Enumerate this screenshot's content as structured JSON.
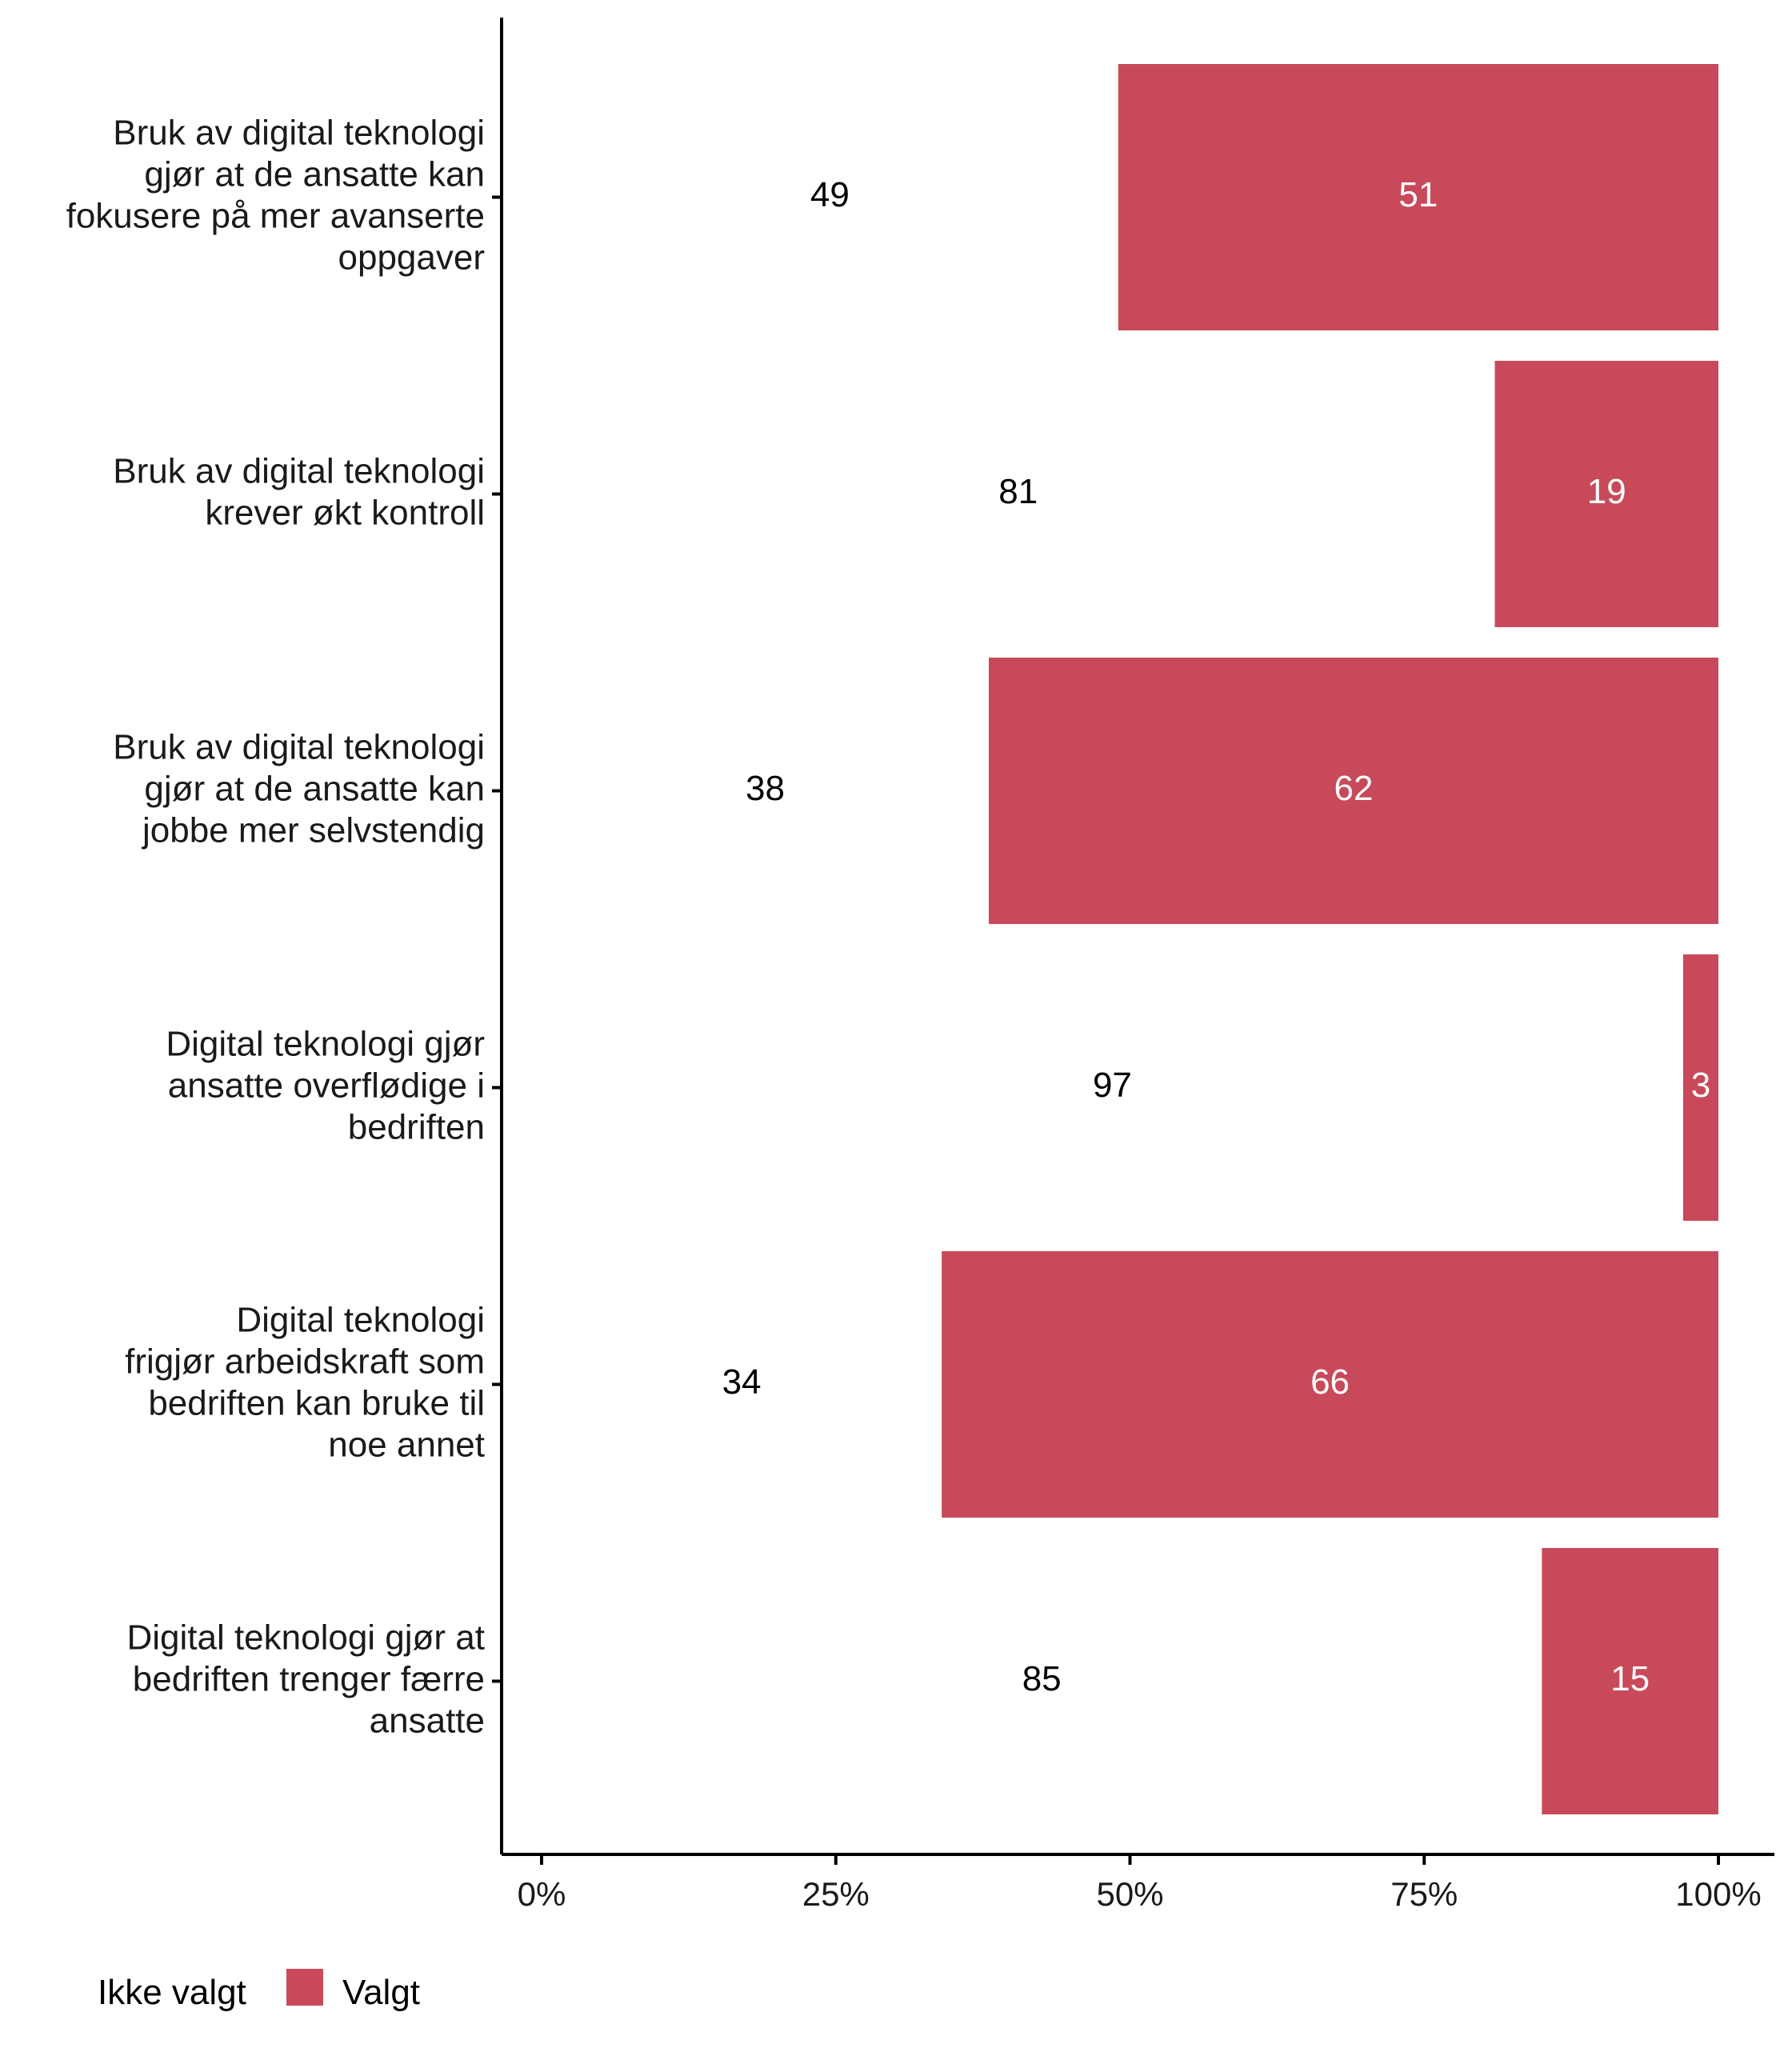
{
  "chart_data": {
    "type": "bar",
    "orientation": "horizontal",
    "stacked": true,
    "categories": [
      [
        "Bruk av digital teknologi",
        "gjør at de ansatte kan",
        "fokusere på mer avanserte",
        "oppgaver"
      ],
      [
        "Bruk av digital teknologi",
        "krever økt kontroll"
      ],
      [
        "Bruk av digital teknologi",
        "gjør at de ansatte kan",
        "jobbe mer selvstendig"
      ],
      [
        "Digital teknologi gjør",
        "ansatte overflødige i",
        "bedriften"
      ],
      [
        "Digital teknologi",
        "frigjør arbeidskraft som",
        "bedriften kan bruke til",
        "noe annet"
      ],
      [
        "Digital teknologi gjør at",
        "bedriften trenger færre",
        "ansatte"
      ]
    ],
    "series": [
      {
        "name": "Ikke valgt",
        "color": "#ffffff",
        "values": [
          49,
          81,
          38,
          97,
          34,
          85
        ]
      },
      {
        "name": "Valgt",
        "color": "#c84a5a",
        "values": [
          51,
          19,
          62,
          3,
          66,
          15
        ]
      }
    ],
    "xlim": [
      0,
      100
    ],
    "xticks": [
      0,
      25,
      50,
      75,
      100
    ],
    "xtick_labels": [
      "0%",
      "25%",
      "50%",
      "75%",
      "100%"
    ],
    "grid": false,
    "legend_position": "bottom-left"
  }
}
